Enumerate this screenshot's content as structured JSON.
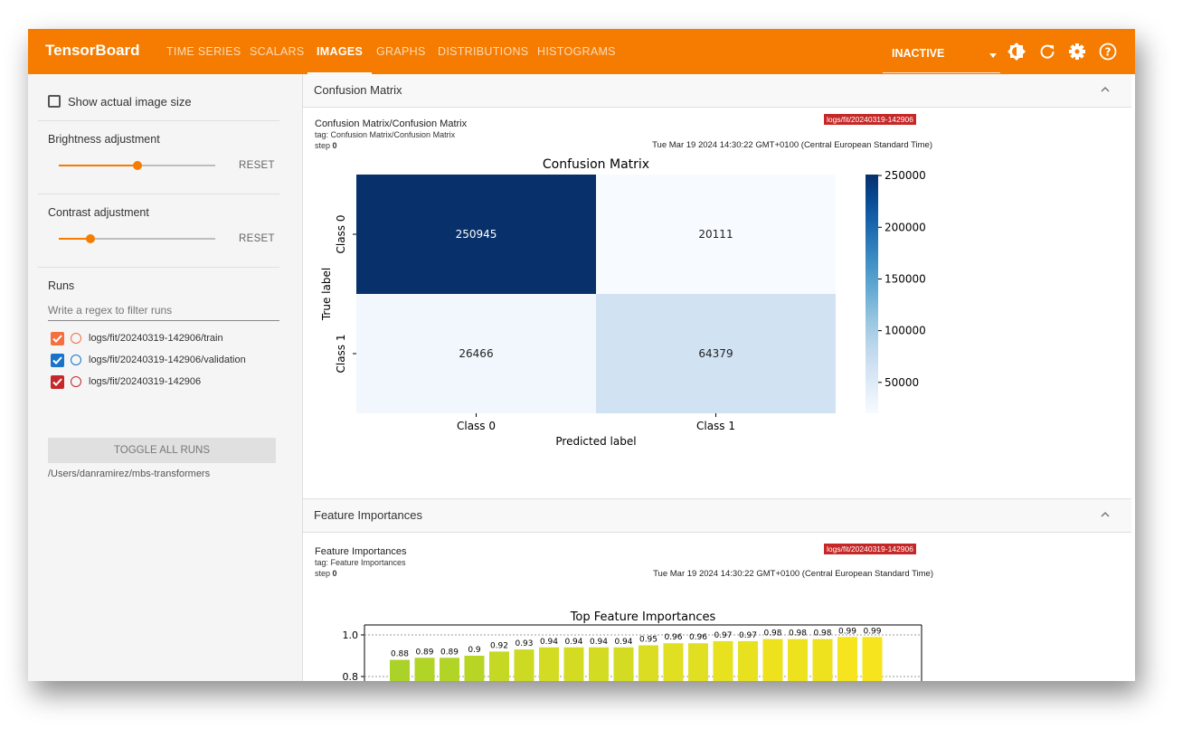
{
  "app": {
    "brand": "TensorBoard",
    "tabs": [
      {
        "label": "TIME SERIES",
        "active": false
      },
      {
        "label": "SCALARS",
        "active": false
      },
      {
        "label": "IMAGES",
        "active": true
      },
      {
        "label": "GRAPHS",
        "active": false
      },
      {
        "label": "DISTRIBUTIONS",
        "active": false
      },
      {
        "label": "HISTOGRAMS",
        "active": false
      }
    ],
    "status_dropdown": "INACTIVE",
    "icons": [
      "theme-icon",
      "refresh-icon",
      "settings-icon",
      "help-icon"
    ],
    "accent_color": "#f57c00"
  },
  "sidebar": {
    "show_actual_size_label": "Show actual image size",
    "brightness_label": "Brightness adjustment",
    "brightness_level": 0.5,
    "contrast_label": "Contrast adjustment",
    "contrast_level": 0.2,
    "reset_label": "RESET",
    "runs_label": "Runs",
    "runs_filter_placeholder": "Write a regex to filter runs",
    "runs": [
      {
        "name": "logs/fit/20240319-142906/train",
        "color": "#f4703e",
        "checked": true
      },
      {
        "name": "logs/fit/20240319-142906/validation",
        "color": "#1a73c8",
        "checked": true
      },
      {
        "name": "logs/fit/20240319-142906",
        "color": "#c62828",
        "checked": true
      }
    ],
    "toggle_all_label": "TOGGLE ALL RUNS",
    "logdir": "/Users/danramirez/mbs-transformers"
  },
  "panels": [
    {
      "header": "Confusion Matrix",
      "card": {
        "title": "Confusion Matrix/Confusion Matrix",
        "tag": "tag: Confusion Matrix/Confusion Matrix",
        "step_label": "step",
        "step": "0",
        "run_badge": "logs/fit/20240319-142906",
        "time": "Tue Mar 19 2024 14:30:22 GMT+0100 (Central European Standard Time)"
      }
    },
    {
      "header": "Feature Importances",
      "card": {
        "title": "Feature Importances",
        "tag": "tag: Feature Importances",
        "step_label": "step",
        "step": "0",
        "run_badge": "logs/fit/20240319-142906",
        "time": "Tue Mar 19 2024 14:30:22 GMT+0100 (Central European Standard Time)"
      }
    }
  ],
  "chart_data": [
    {
      "type": "heatmap",
      "title": "Confusion Matrix",
      "xlabel": "Predicted label",
      "ylabel": "True label",
      "x_categories": [
        "Class 0",
        "Class 1"
      ],
      "y_categories": [
        "Class 0",
        "Class 1"
      ],
      "values": [
        [
          250945,
          20111
        ],
        [
          26466,
          64379
        ]
      ],
      "colorbar_ticks": [
        "250000",
        "200000",
        "150000",
        "100000",
        "50000"
      ],
      "colorbar_range": [
        20111,
        250945
      ],
      "colormap": "Blues"
    },
    {
      "type": "bar",
      "title": "Top Feature Importances",
      "values": [
        0.88,
        0.89,
        0.89,
        0.9,
        0.92,
        0.93,
        0.94,
        0.94,
        0.94,
        0.94,
        0.95,
        0.96,
        0.96,
        0.97,
        0.97,
        0.98,
        0.98,
        0.98,
        0.99,
        0.99
      ],
      "y_ticks": [
        "1.0",
        "0.8"
      ],
      "ylim": [
        0.0,
        1.05
      ],
      "grid": true
    }
  ]
}
